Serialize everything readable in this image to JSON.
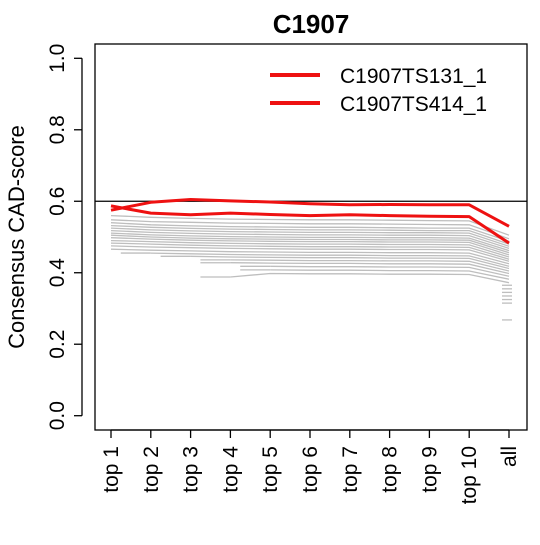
{
  "chart_data": {
    "type": "line",
    "title": "C1907",
    "xlabel": "",
    "ylabel": "Consensus CAD-score",
    "categories": [
      "top 1",
      "top 2",
      "top 3",
      "top 4",
      "top 5",
      "top 6",
      "top 7",
      "top 8",
      "top 9",
      "top 10",
      "all"
    ],
    "ylim": [
      -0.04,
      1.04
    ],
    "yticks": [
      0.0,
      0.2,
      0.4,
      0.6,
      0.8,
      1.0
    ],
    "ytick_labels": [
      "0.0",
      "0.2",
      "0.4",
      "0.6",
      "0.8",
      "1.0"
    ],
    "reference_line": 0.6,
    "grid": false,
    "legend_position": "top-right",
    "colors": {
      "highlight": "#ee1111",
      "background_series": "#bebebe",
      "axis": "#000000"
    },
    "series": [
      {
        "name": "C1907TS131_1",
        "highlighted": true,
        "values": [
          0.575,
          0.597,
          0.605,
          0.601,
          0.598,
          0.593,
          0.59,
          0.591,
          0.59,
          0.59,
          0.53
        ]
      },
      {
        "name": "C1907TS414_1",
        "highlighted": true,
        "values": [
          0.587,
          0.567,
          0.562,
          0.567,
          0.563,
          0.56,
          0.562,
          0.56,
          0.558,
          0.557,
          0.483
        ]
      }
    ],
    "background_series": [
      [
        0.56,
        0.555,
        0.552,
        0.55,
        0.549,
        0.548,
        0.548,
        0.547,
        0.546,
        0.545,
        0.505
      ],
      [
        0.548,
        0.543,
        0.541,
        0.539,
        0.538,
        0.537,
        0.537,
        0.536,
        0.535,
        0.534,
        0.495
      ],
      [
        0.54,
        0.534,
        0.531,
        0.529,
        0.528,
        0.527,
        0.527,
        0.526,
        0.525,
        0.525,
        0.488
      ],
      [
        0.532,
        0.527,
        0.524,
        0.522,
        0.521,
        0.52,
        0.52,
        0.519,
        0.518,
        0.518,
        0.48
      ],
      [
        0.525,
        0.52,
        0.517,
        0.515,
        0.514,
        0.513,
        0.513,
        0.512,
        0.512,
        0.511,
        0.474
      ],
      [
        0.518,
        0.513,
        0.51,
        0.508,
        0.507,
        0.506,
        0.506,
        0.505,
        0.505,
        0.504,
        0.468
      ],
      [
        0.511,
        0.506,
        0.503,
        0.501,
        0.5,
        0.499,
        0.499,
        0.498,
        0.498,
        0.497,
        0.462
      ],
      [
        0.505,
        0.5,
        0.497,
        0.495,
        0.494,
        0.493,
        0.493,
        0.492,
        0.492,
        0.491,
        0.456
      ],
      [
        0.498,
        0.494,
        0.491,
        0.489,
        0.488,
        0.487,
        0.487,
        0.486,
        0.486,
        0.485,
        0.45
      ],
      [
        0.49,
        0.487,
        0.484,
        0.482,
        0.481,
        0.48,
        0.48,
        0.479,
        0.479,
        0.478,
        0.444
      ],
      [
        0.483,
        0.48,
        0.477,
        0.475,
        0.474,
        0.473,
        0.473,
        0.472,
        0.472,
        0.471,
        0.438
      ],
      [
        0.475,
        0.472,
        0.47,
        0.468,
        0.467,
        0.466,
        0.466,
        0.465,
        0.465,
        0.464,
        0.432
      ],
      [
        0.466,
        0.463,
        0.461,
        0.459,
        0.458,
        0.457,
        0.457,
        0.456,
        0.456,
        0.455,
        0.425
      ],
      [
        null,
        0.455,
        0.453,
        0.451,
        0.45,
        0.449,
        0.449,
        0.448,
        0.448,
        0.447,
        0.418
      ],
      [
        null,
        null,
        0.446,
        0.444,
        0.443,
        0.442,
        0.442,
        0.441,
        0.441,
        0.44,
        0.412
      ],
      [
        null,
        null,
        null,
        0.436,
        0.435,
        0.434,
        0.434,
        0.433,
        0.433,
        0.432,
        0.405
      ],
      [
        null,
        null,
        null,
        0.428,
        0.427,
        0.426,
        0.426,
        0.425,
        0.425,
        0.424,
        0.398
      ],
      [
        null,
        null,
        null,
        null,
        0.418,
        0.417,
        0.417,
        0.416,
        0.416,
        0.415,
        0.39
      ],
      [
        null,
        null,
        null,
        null,
        0.408,
        0.407,
        0.407,
        0.406,
        0.406,
        0.405,
        0.382
      ],
      [
        null,
        null,
        null,
        0.388,
        0.398,
        0.397,
        0.397,
        0.396,
        0.396,
        0.395,
        0.372
      ]
    ],
    "all_only_values": [
      0.365,
      0.355,
      0.345,
      0.335,
      0.325,
      0.315,
      0.268
    ]
  }
}
